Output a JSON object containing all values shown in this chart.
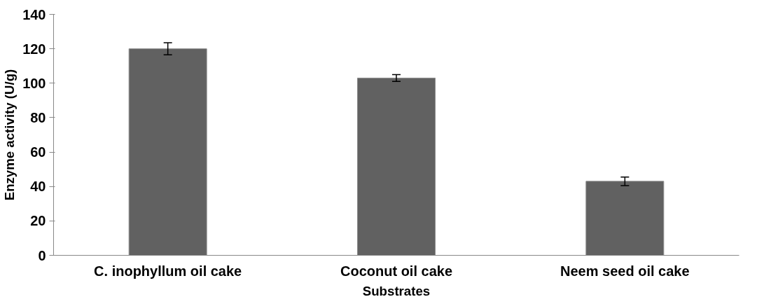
{
  "chart_data": {
    "type": "bar",
    "xlabel": "Substrates",
    "ylabel": "Enzyme activity (U/g)",
    "categories": [
      "C. inophyllum oil cake",
      "Coconut oil cake",
      "Neem seed oil cake"
    ],
    "values": [
      120,
      103,
      43
    ],
    "errors": [
      3.5,
      2,
      2.5
    ],
    "color": "#616161",
    "ylim": [
      0,
      140
    ],
    "yticks": [
      0,
      20,
      40,
      60,
      80,
      100,
      120,
      140
    ],
    "grid": false
  }
}
